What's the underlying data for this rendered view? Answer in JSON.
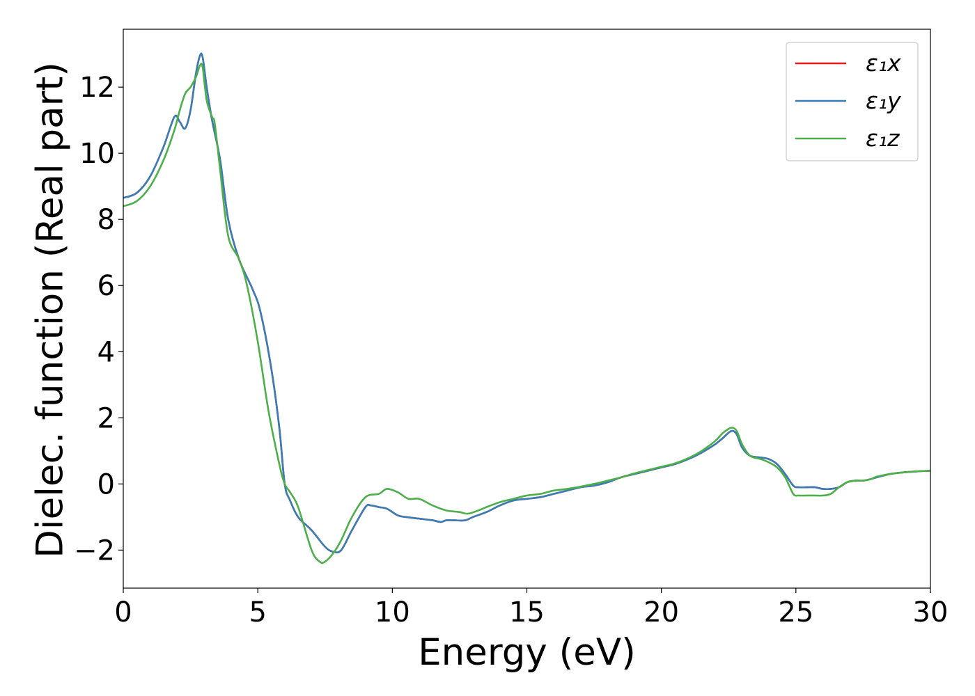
{
  "chart_data": {
    "type": "line",
    "xlabel": "Energy (eV)",
    "ylabel": "Dielec. function (Real part)",
    "xlim": [
      0,
      30
    ],
    "ylim": [
      -3.15,
      13.75
    ],
    "xticks": [
      0,
      5,
      10,
      15,
      20,
      25,
      30
    ],
    "xtick_labels": [
      "0",
      "5",
      "10",
      "15",
      "20",
      "25",
      "30"
    ],
    "yticks": [
      -2,
      0,
      2,
      4,
      6,
      8,
      10,
      12
    ],
    "ytick_labels": [
      "−2",
      "0",
      "2",
      "4",
      "6",
      "8",
      "10",
      "12"
    ],
    "grid": false,
    "legend_position": "top-right",
    "series": [
      {
        "name": "ε₁x",
        "color": "#e41a1c",
        "x": [
          0,
          0.5,
          1.0,
          1.5,
          1.9,
          2.1,
          2.3,
          2.5,
          2.7,
          2.85,
          2.95,
          3.1,
          3.3,
          3.6,
          3.9,
          4.3,
          4.8,
          5.1,
          5.5,
          5.8,
          6.0,
          6.2,
          6.5,
          7.0,
          7.5,
          7.8,
          8.1,
          8.5,
          9.0,
          9.2,
          9.5,
          9.8,
          10.2,
          10.5,
          11.0,
          11.5,
          11.8,
          12.0,
          12.3,
          12.7,
          13.0,
          13.5,
          14.0,
          14.5,
          15.0,
          15.5,
          16.0,
          16.5,
          17.0,
          17.5,
          18.0,
          18.5,
          19.0,
          19.5,
          20.0,
          20.5,
          21.0,
          21.5,
          22.0,
          22.3,
          22.6,
          22.8,
          23.0,
          23.3,
          23.7,
          24.0,
          24.3,
          24.6,
          24.9,
          25.1,
          25.4,
          25.7,
          26.0,
          26.3,
          26.6,
          26.9,
          27.2,
          27.5,
          27.8,
          28.0,
          28.5,
          29.0,
          29.5,
          30.0
        ],
        "y": [
          8.65,
          8.8,
          9.3,
          10.2,
          11.1,
          10.95,
          10.75,
          11.3,
          12.4,
          12.95,
          12.9,
          12.0,
          11.0,
          9.8,
          8.0,
          6.8,
          5.9,
          5.2,
          3.5,
          1.7,
          0.0,
          -0.5,
          -1.0,
          -1.4,
          -1.9,
          -2.05,
          -2.0,
          -1.4,
          -0.7,
          -0.65,
          -0.7,
          -0.75,
          -0.95,
          -1.0,
          -1.05,
          -1.1,
          -1.15,
          -1.1,
          -1.1,
          -1.1,
          -1.0,
          -0.85,
          -0.65,
          -0.5,
          -0.45,
          -0.4,
          -0.3,
          -0.2,
          -0.1,
          -0.05,
          0.05,
          0.2,
          0.3,
          0.4,
          0.5,
          0.6,
          0.75,
          0.95,
          1.2,
          1.4,
          1.6,
          1.5,
          1.1,
          0.85,
          0.8,
          0.75,
          0.6,
          0.3,
          -0.05,
          -0.1,
          -0.1,
          -0.1,
          -0.15,
          -0.15,
          -0.1,
          0.05,
          0.1,
          0.1,
          0.15,
          0.2,
          0.3,
          0.35,
          0.38,
          0.4
        ]
      },
      {
        "name": "ε₁y",
        "color": "#377eb8",
        "x": [
          0,
          0.5,
          1.0,
          1.5,
          1.9,
          2.1,
          2.3,
          2.5,
          2.7,
          2.85,
          2.95,
          3.1,
          3.3,
          3.6,
          3.9,
          4.3,
          4.8,
          5.1,
          5.5,
          5.8,
          6.0,
          6.2,
          6.5,
          7.0,
          7.5,
          7.8,
          8.1,
          8.5,
          9.0,
          9.2,
          9.5,
          9.8,
          10.2,
          10.5,
          11.0,
          11.5,
          11.8,
          12.0,
          12.3,
          12.7,
          13.0,
          13.5,
          14.0,
          14.5,
          15.0,
          15.5,
          16.0,
          16.5,
          17.0,
          17.5,
          18.0,
          18.5,
          19.0,
          19.5,
          20.0,
          20.5,
          21.0,
          21.5,
          22.0,
          22.3,
          22.6,
          22.8,
          23.0,
          23.3,
          23.7,
          24.0,
          24.3,
          24.6,
          24.9,
          25.1,
          25.4,
          25.7,
          26.0,
          26.3,
          26.6,
          26.9,
          27.2,
          27.5,
          27.8,
          28.0,
          28.5,
          29.0,
          29.5,
          30.0
        ],
        "y": [
          8.65,
          8.8,
          9.3,
          10.2,
          11.1,
          10.95,
          10.75,
          11.3,
          12.4,
          12.95,
          12.9,
          12.0,
          11.0,
          9.8,
          8.0,
          6.8,
          5.9,
          5.2,
          3.5,
          1.7,
          0.0,
          -0.5,
          -1.0,
          -1.4,
          -1.9,
          -2.05,
          -2.0,
          -1.4,
          -0.7,
          -0.65,
          -0.7,
          -0.75,
          -0.95,
          -1.0,
          -1.05,
          -1.1,
          -1.15,
          -1.1,
          -1.1,
          -1.1,
          -1.0,
          -0.85,
          -0.65,
          -0.5,
          -0.45,
          -0.4,
          -0.3,
          -0.2,
          -0.1,
          -0.05,
          0.05,
          0.2,
          0.3,
          0.4,
          0.5,
          0.6,
          0.75,
          0.95,
          1.2,
          1.4,
          1.6,
          1.5,
          1.1,
          0.85,
          0.8,
          0.75,
          0.6,
          0.3,
          -0.05,
          -0.1,
          -0.1,
          -0.1,
          -0.15,
          -0.15,
          -0.1,
          0.05,
          0.1,
          0.1,
          0.15,
          0.2,
          0.3,
          0.35,
          0.38,
          0.4
        ]
      },
      {
        "name": "ε₁z",
        "color": "#4daf4a",
        "x": [
          0,
          0.5,
          1.0,
          1.5,
          1.9,
          2.1,
          2.3,
          2.5,
          2.7,
          2.85,
          2.95,
          3.1,
          3.3,
          3.4,
          3.6,
          3.9,
          4.3,
          4.6,
          5.0,
          5.4,
          5.8,
          6.0,
          6.2,
          6.5,
          7.0,
          7.3,
          7.5,
          7.8,
          8.1,
          8.5,
          9.0,
          9.5,
          9.8,
          10.2,
          10.6,
          11.0,
          11.5,
          12.0,
          12.5,
          12.8,
          13.2,
          13.5,
          14.0,
          14.5,
          15.0,
          15.5,
          16.0,
          16.5,
          17.0,
          17.5,
          18.0,
          18.5,
          19.0,
          19.5,
          20.0,
          20.5,
          21.0,
          21.5,
          22.0,
          22.3,
          22.6,
          22.8,
          23.0,
          23.3,
          23.7,
          24.0,
          24.3,
          24.6,
          24.9,
          25.1,
          25.4,
          25.7,
          26.0,
          26.3,
          26.6,
          26.9,
          27.2,
          27.5,
          27.8,
          28.0,
          28.5,
          29.0,
          29.5,
          30.0
        ],
        "y": [
          8.4,
          8.55,
          9.0,
          9.8,
          10.7,
          11.3,
          11.8,
          12.0,
          12.3,
          12.65,
          12.6,
          11.6,
          11.1,
          10.9,
          9.5,
          7.5,
          6.8,
          6.0,
          4.3,
          2.2,
          0.6,
          0.0,
          -0.25,
          -0.7,
          -2.0,
          -2.35,
          -2.35,
          -2.1,
          -1.7,
          -1.0,
          -0.4,
          -0.3,
          -0.15,
          -0.25,
          -0.45,
          -0.45,
          -0.65,
          -0.8,
          -0.85,
          -0.9,
          -0.8,
          -0.7,
          -0.55,
          -0.45,
          -0.35,
          -0.3,
          -0.2,
          -0.15,
          -0.08,
          0.0,
          0.1,
          0.2,
          0.32,
          0.42,
          0.52,
          0.62,
          0.78,
          1.0,
          1.3,
          1.55,
          1.7,
          1.6,
          1.2,
          0.85,
          0.75,
          0.65,
          0.5,
          0.2,
          -0.3,
          -0.35,
          -0.35,
          -0.35,
          -0.35,
          -0.3,
          -0.1,
          0.05,
          0.1,
          0.1,
          0.15,
          0.22,
          0.3,
          0.35,
          0.38,
          0.4
        ]
      }
    ]
  }
}
